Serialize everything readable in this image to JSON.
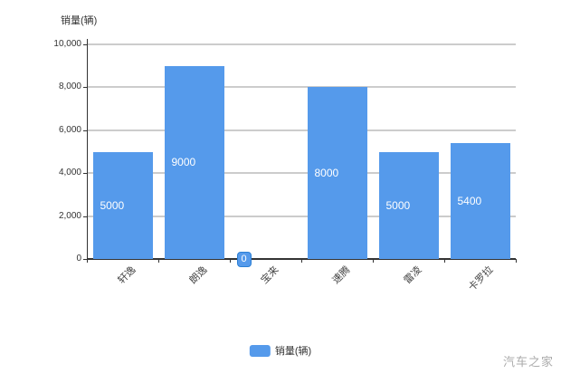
{
  "watermark": "汽车之家",
  "chart_data": {
    "type": "bar",
    "y_axis_title": "销量(辆)",
    "categories": [
      "轩逸",
      "朗逸",
      "宝来",
      "速腾",
      "雷凌",
      "卡罗拉"
    ],
    "series": [
      {
        "name": "销量(辆)",
        "values": [
          5000,
          9000,
          0,
          8000,
          5000,
          5400
        ]
      }
    ],
    "data_labels": [
      "5000",
      "9000",
      "0",
      "8000",
      "5000",
      "5400"
    ],
    "ylim": [
      0,
      10000
    ],
    "y_ticks": [
      {
        "value": 10000,
        "label": "10,000"
      },
      {
        "value": 8000,
        "label": "8,000"
      },
      {
        "value": 6000,
        "label": "6,000"
      },
      {
        "value": 4000,
        "label": "4,000"
      },
      {
        "value": 2000,
        "label": "2,000"
      },
      {
        "value": 0,
        "label": "0"
      }
    ],
    "grid": true,
    "legend": {
      "position": "bottom",
      "entries": [
        {
          "label": "销量(辆)",
          "color": "#559AEB"
        }
      ]
    },
    "colors": {
      "bar": "#559AEB",
      "gridline": "#cccccc",
      "axis": "#333333",
      "bar_label_text": "#ffffff",
      "tick_text": "#333333",
      "watermark": "#ababab"
    }
  }
}
